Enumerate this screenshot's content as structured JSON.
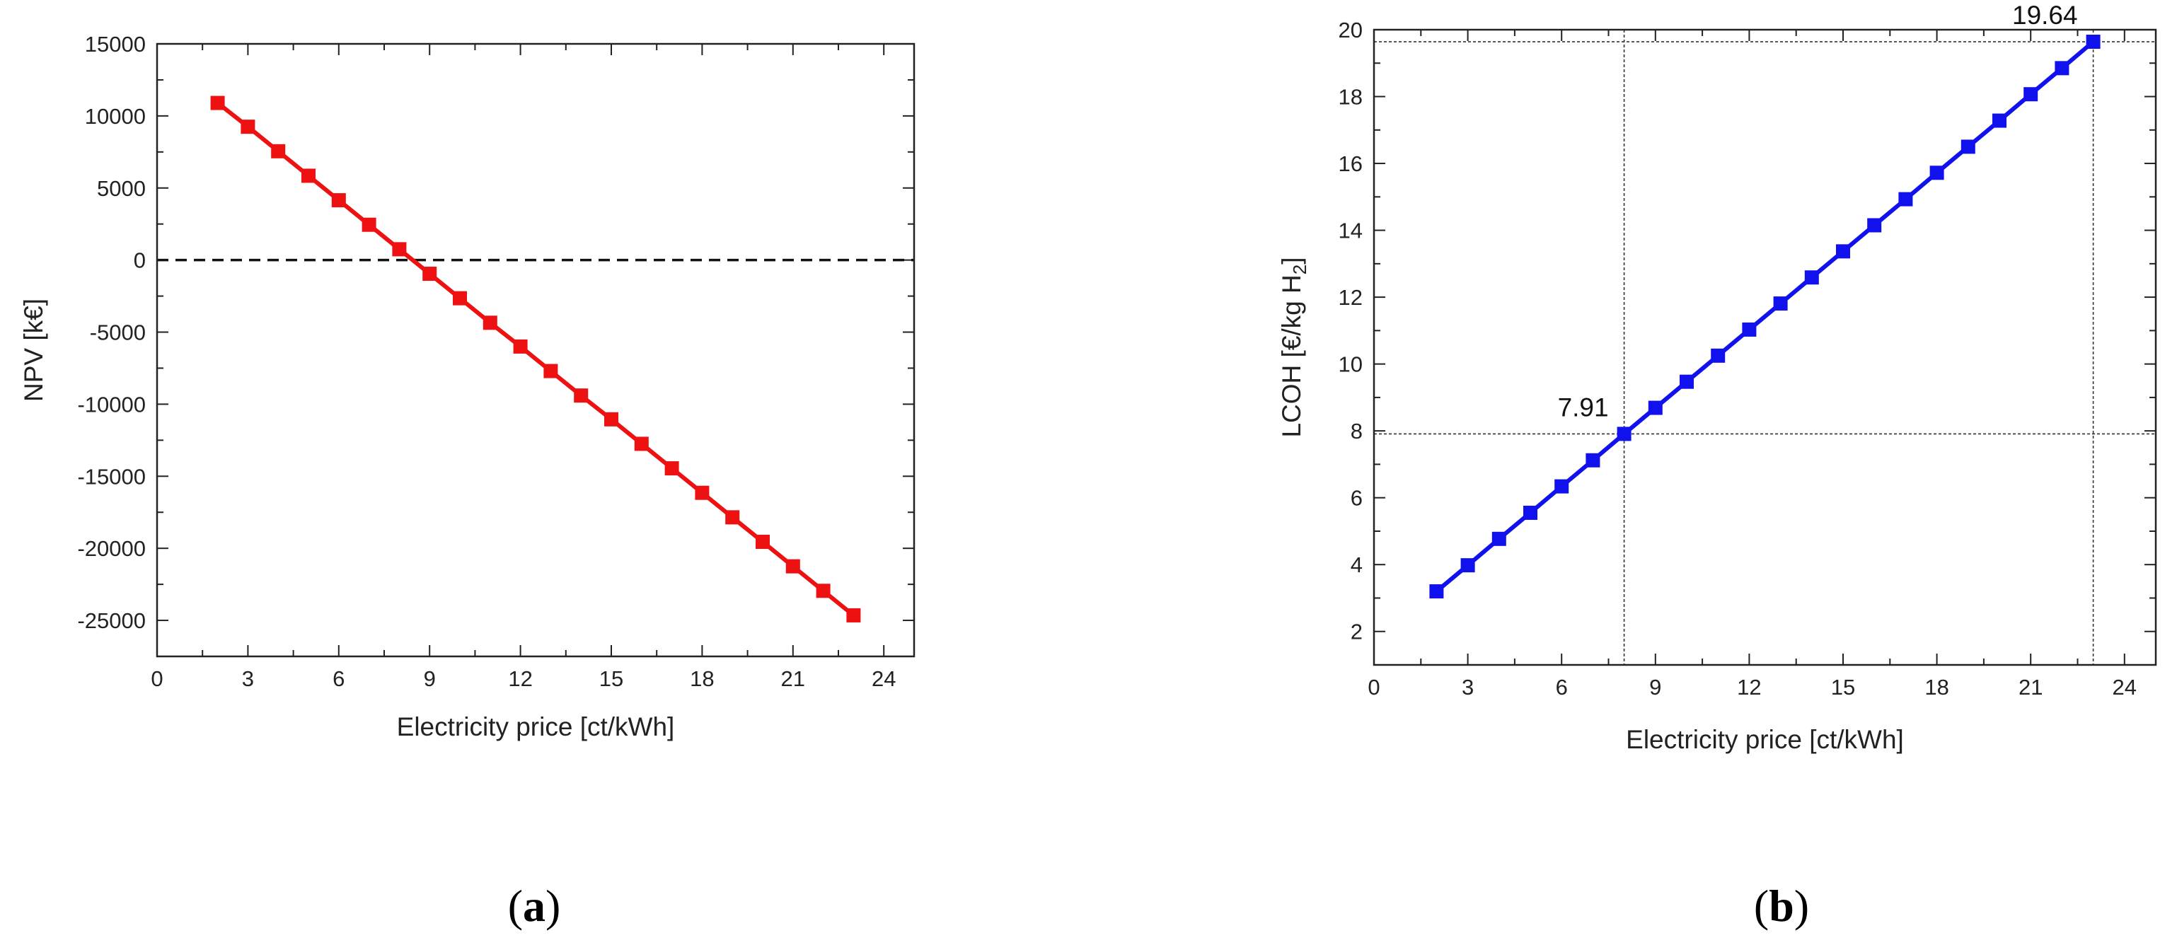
{
  "chart_data": [
    {
      "type": "line",
      "caption_letter": "a",
      "xlabel": "Electricity price [ct/kWh]",
      "ylabel": "NPV [k€]",
      "xlim": [
        0,
        25
      ],
      "ylim": [
        -27500,
        15000
      ],
      "xticks": [
        0,
        3,
        6,
        9,
        12,
        15,
        18,
        21,
        24
      ],
      "yticks": [
        15000,
        10000,
        5000,
        0,
        -5000,
        -10000,
        -15000,
        -20000,
        -25000
      ],
      "reference_line": {
        "axis": "y",
        "value": 0,
        "style": "dashed"
      },
      "series": [
        {
          "name": "NPV",
          "color": "#ee1111",
          "marker": "square",
          "x": [
            2,
            3,
            4,
            5,
            6,
            7,
            8,
            9,
            10,
            11,
            12,
            13,
            14,
            15,
            16,
            17,
            18,
            19,
            20,
            21,
            22,
            23
          ],
          "y": [
            10900,
            9250,
            7550,
            5850,
            4150,
            2450,
            750,
            -950,
            -2650,
            -4350,
            -6000,
            -7700,
            -9400,
            -11050,
            -12750,
            -14450,
            -16150,
            -17850,
            -19550,
            -21250,
            -22950,
            -24650
          ]
        }
      ]
    },
    {
      "type": "line",
      "caption_letter": "b",
      "xlabel": "Electricity price [ct/kWh]",
      "ylabel_main": "LCOH [€/kg H",
      "ylabel_sub": "2",
      "ylabel_end": "]",
      "xlim": [
        0,
        25
      ],
      "ylim": [
        1,
        20
      ],
      "xticks": [
        0,
        3,
        6,
        9,
        12,
        15,
        18,
        21,
        24
      ],
      "yticks": [
        2,
        4,
        6,
        8,
        10,
        12,
        14,
        16,
        18,
        20
      ],
      "annotations": [
        {
          "text": "7.91",
          "x": 8,
          "y": 7.91
        },
        {
          "text": "19.64",
          "x": 23,
          "y": 19.64
        }
      ],
      "series": [
        {
          "name": "LCOH",
          "color": "#1111ee",
          "marker": "square",
          "x": [
            2,
            3,
            4,
            5,
            6,
            7,
            8,
            9,
            10,
            11,
            12,
            13,
            14,
            15,
            16,
            17,
            18,
            19,
            20,
            21,
            22,
            23
          ],
          "y": [
            3.2,
            3.98,
            4.77,
            5.55,
            6.34,
            7.12,
            7.91,
            8.69,
            9.47,
            10.25,
            11.03,
            11.81,
            12.59,
            13.37,
            14.15,
            14.93,
            15.72,
            16.5,
            17.28,
            18.07,
            18.85,
            19.64
          ]
        }
      ]
    }
  ]
}
